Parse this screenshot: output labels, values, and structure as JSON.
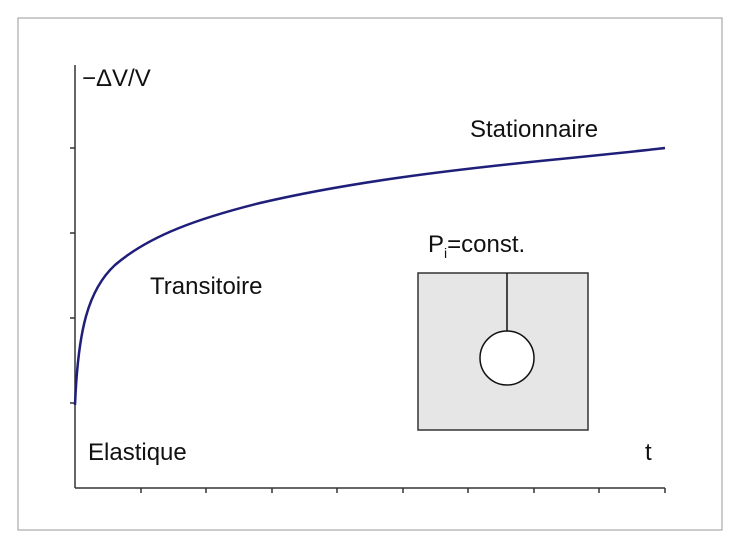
{
  "axis": {
    "y_label": "−ΔV/V",
    "x_label": "t"
  },
  "regions": {
    "elastic": "Elastique",
    "transient": "Transitoire",
    "stationary": "Stationnaire"
  },
  "inset": {
    "label": {
      "base": "P",
      "subscript": "i",
      "rest": "=const."
    }
  }
}
